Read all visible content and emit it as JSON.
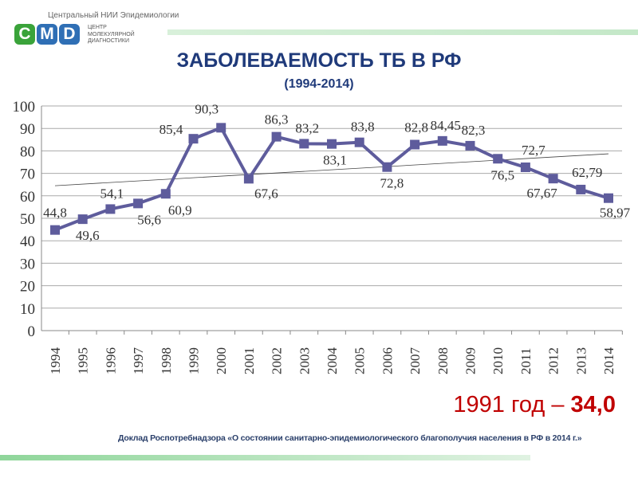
{
  "header": {
    "org": "Центральный НИИ Эпидемиологии",
    "logo_letters": [
      "C",
      "M",
      "D"
    ],
    "logo_subtitle": [
      "ЦЕНТР",
      "МОЛЕКУЛЯРНОЙ",
      "ДИАГНОСТИКИ"
    ]
  },
  "title": "ЗАБОЛЕВАЕМОСТЬ ТБ В РФ",
  "subtitle": "(1994-2014)",
  "note": {
    "prefix": "1991 год – ",
    "value": "34,0"
  },
  "source": "Доклад Роспотребнадзора «О состоянии санитарно-эпидемиологического благополучия населения в  РФ в 2014 г.»",
  "colors": {
    "series": "#5e5c9c",
    "title": "#1f3a7a",
    "note": "#c00000",
    "logo": [
      "#3aa33a",
      "#2f6fb5",
      "#2f6fb5"
    ]
  },
  "chart_data": {
    "type": "line",
    "x": [
      "1994",
      "1995",
      "1996",
      "1997",
      "1998",
      "1999",
      "2000",
      "2001",
      "2002",
      "2003",
      "2004",
      "2005",
      "2006",
      "2007",
      "2008",
      "2009",
      "2010",
      "2011",
      "2012",
      "2013",
      "2014"
    ],
    "series": [
      {
        "name": "Заболеваемость ТБ",
        "values": [
          44.8,
          49.6,
          54.1,
          56.6,
          60.9,
          85.4,
          90.3,
          67.6,
          86.3,
          83.2,
          83.1,
          83.8,
          72.8,
          82.8,
          84.45,
          82.3,
          76.5,
          72.7,
          67.67,
          62.79,
          58.97
        ]
      }
    ],
    "data_labels": [
      "44,8",
      "49,6",
      "54,1",
      "56,6",
      "60,9",
      "85,4",
      "90,3",
      "67,6",
      "86,3",
      "83,2",
      "83,1",
      "83,8",
      "72,8",
      "82,8",
      "84,45",
      "82,3",
      "76,5",
      "72,7",
      "67,67",
      "62,79",
      "58,97"
    ],
    "trendline": {
      "type": "linear",
      "start": 64.5,
      "end": 78.7
    },
    "yticks": [
      "0",
      "10",
      "20",
      "30",
      "40",
      "50",
      "60",
      "70",
      "80",
      "90",
      "100"
    ],
    "ylim": [
      0,
      100
    ],
    "grid": true,
    "legend": "none"
  }
}
